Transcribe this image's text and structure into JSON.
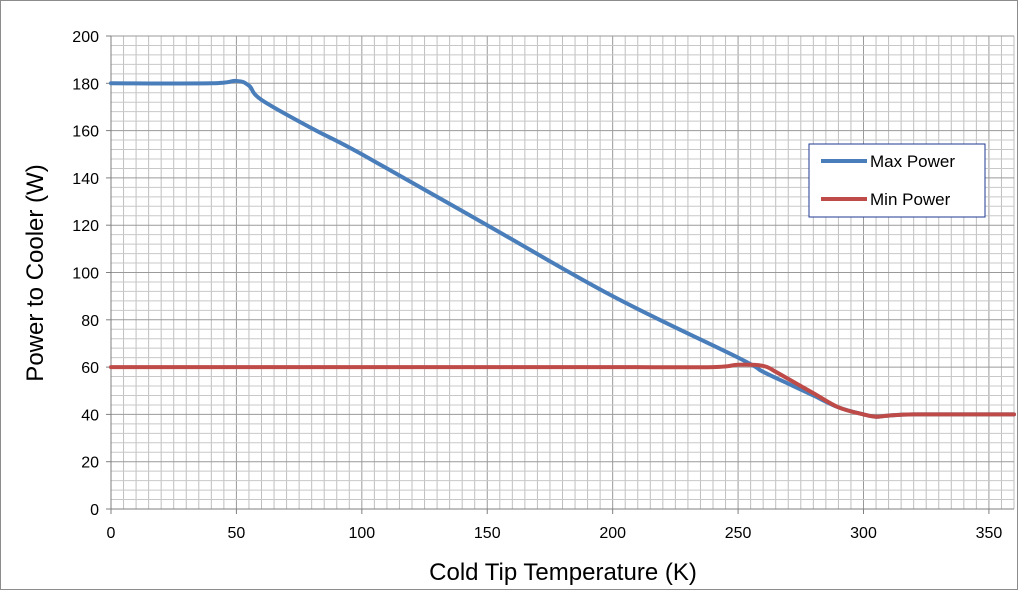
{
  "chart_data": {
    "type": "line",
    "title": "",
    "xlabel": "Cold Tip Temperature (K)",
    "ylabel": "Power to Cooler (W)",
    "xlim": [
      0,
      360
    ],
    "ylim": [
      0,
      200
    ],
    "x_ticks": [
      0,
      50,
      100,
      150,
      200,
      250,
      300,
      350
    ],
    "y_ticks": [
      0,
      20,
      40,
      60,
      80,
      100,
      120,
      140,
      160,
      180,
      200
    ],
    "x_minor_step": 5,
    "y_minor_step": 4,
    "grid": true,
    "legend_position": "right",
    "series": [
      {
        "name": "Max Power",
        "color": "#4a7ebb",
        "x": [
          0,
          40,
          50,
          55,
          60,
          80,
          100,
          150,
          200,
          250,
          260,
          270,
          280,
          290,
          300,
          305,
          310,
          320,
          340,
          360
        ],
        "y": [
          180,
          180,
          181,
          179,
          173,
          161,
          150,
          120,
          90,
          64,
          58,
          53,
          48,
          43,
          40,
          39,
          39.5,
          40,
          40,
          40
        ]
      },
      {
        "name": "Min Power",
        "color": "#be4b48",
        "x": [
          0,
          50,
          100,
          150,
          200,
          240,
          250,
          260,
          265,
          270,
          280,
          290,
          300,
          305,
          310,
          320,
          340,
          360
        ],
        "y": [
          60,
          60,
          60,
          60,
          60,
          60,
          61,
          60.5,
          58,
          55,
          49,
          43,
          40,
          39,
          39.5,
          40,
          40,
          40
        ]
      }
    ]
  }
}
